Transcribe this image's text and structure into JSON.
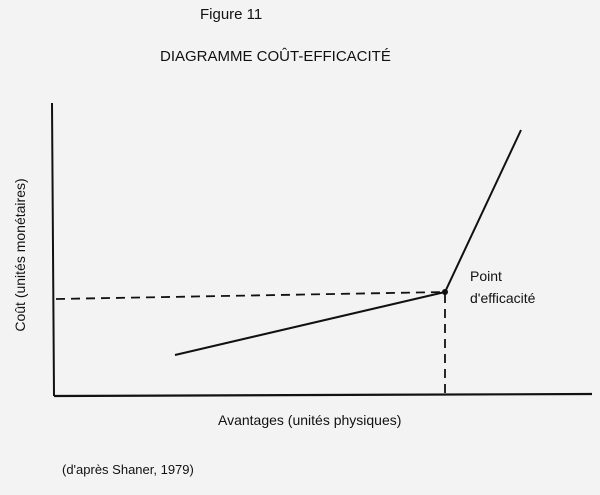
{
  "figure": {
    "number": "Figure 11",
    "title": "DIAGRAMME COÛT-EFFICACITÉ",
    "y_label": "Coût (unités monétaires)",
    "x_label": "Avantages (unités physiques)",
    "point_label_line1": "Point",
    "point_label_line2": "d'efficacité",
    "source": "(d'après Shaner, 1979)"
  },
  "colors": {
    "ink": "#111111",
    "paper": "#f3f3f3"
  }
}
